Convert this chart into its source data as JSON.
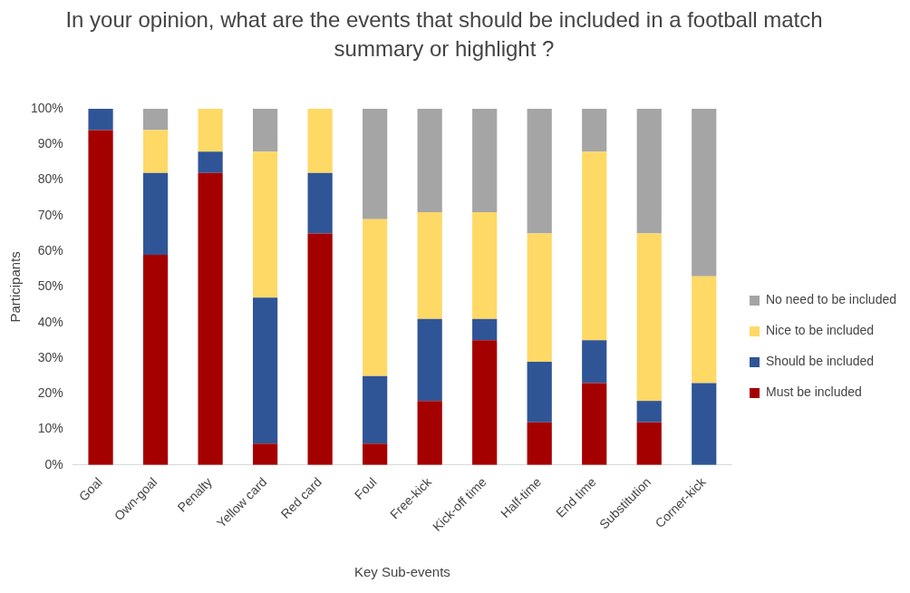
{
  "chart_data": {
    "type": "bar",
    "stacked": true,
    "title": "In your opinion, what are the events that should be included in a football match summary or highlight ?",
    "xlabel": "Key Sub-events",
    "ylabel": "Participants",
    "categories": [
      "Goal",
      "Own-goal",
      "Penalty",
      "Yellow card",
      "Red card",
      "Foul",
      "Free-kick",
      "Kick-off time",
      "Half-time",
      "End time",
      "Substitution",
      "Corner-kick"
    ],
    "series": [
      {
        "name": "Must be included",
        "color": "#a50000",
        "values": [
          94,
          59,
          82,
          6,
          65,
          6,
          18,
          35,
          12,
          23,
          12,
          0
        ]
      },
      {
        "name": "Should be included",
        "color": "#2f5597",
        "values": [
          6,
          23,
          6,
          41,
          17,
          19,
          23,
          6,
          17,
          12,
          6,
          23
        ]
      },
      {
        "name": "Nice to be included",
        "color": "#ffd966",
        "values": [
          0,
          12,
          12,
          41,
          18,
          44,
          30,
          30,
          36,
          53,
          47,
          30
        ]
      },
      {
        "name": "No need to be included",
        "color": "#a5a5a5",
        "values": [
          0,
          6,
          0,
          12,
          0,
          31,
          29,
          29,
          35,
          12,
          35,
          47
        ]
      }
    ],
    "ylim": [
      0,
      100
    ],
    "yticks": [
      {
        "value": 0,
        "label": "0%"
      },
      {
        "value": 10,
        "label": "10%"
      },
      {
        "value": 20,
        "label": "20%"
      },
      {
        "value": 30,
        "label": "30%"
      },
      {
        "value": 40,
        "label": "40%"
      },
      {
        "value": 50,
        "label": "50%"
      },
      {
        "value": 60,
        "label": "60%"
      },
      {
        "value": 70,
        "label": "70%"
      },
      {
        "value": 80,
        "label": "80%"
      },
      {
        "value": 90,
        "label": "90%"
      },
      {
        "value": 100,
        "label": "100%"
      }
    ],
    "grid": false,
    "legend": "right"
  }
}
